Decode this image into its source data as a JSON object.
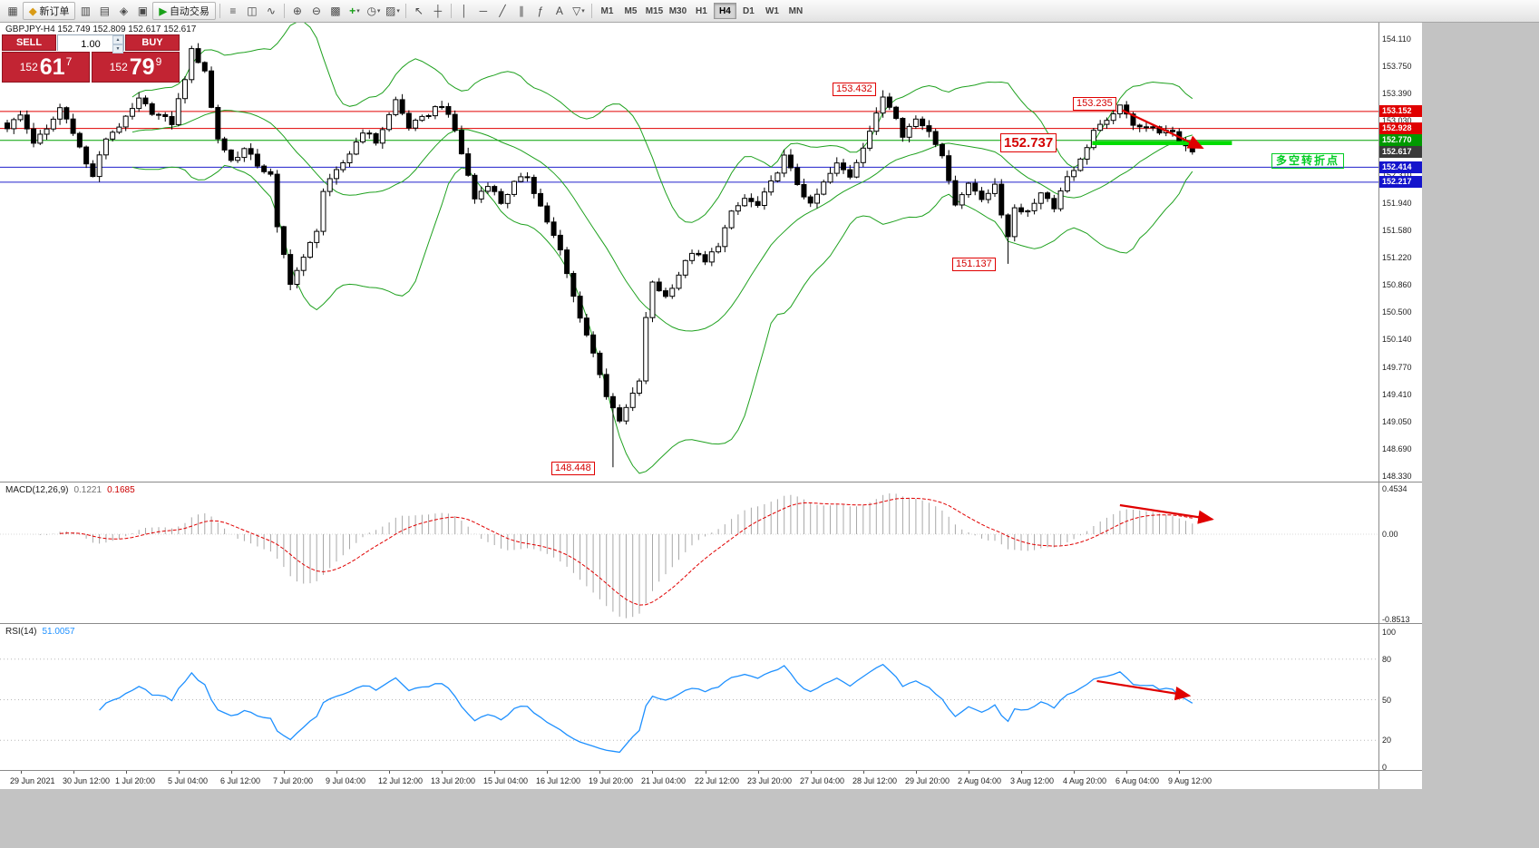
{
  "toolbar": {
    "items": [
      {
        "t": "i",
        "name": "new-chart-icon",
        "g": "▦"
      },
      {
        "t": "b",
        "name": "new-order-button",
        "g": "◆",
        "gc": "#d99b17",
        "label": "新订单"
      },
      {
        "t": "i",
        "name": "market-watch-icon",
        "g": "▥"
      },
      {
        "t": "i",
        "name": "data-window-icon",
        "g": "▤"
      },
      {
        "t": "i",
        "name": "navigator-icon",
        "g": "◈"
      },
      {
        "t": "i",
        "name": "terminal-icon",
        "g": "▣"
      },
      {
        "t": "b",
        "name": "autotrading-button",
        "g": "▶",
        "gc": "#18a018",
        "label": "自动交易"
      },
      {
        "t": "s"
      },
      {
        "t": "i",
        "name": "bar-chart-icon",
        "g": "≡"
      },
      {
        "t": "i",
        "name": "candlestick-chart-icon",
        "g": "◫"
      },
      {
        "t": "i",
        "name": "line-chart-icon",
        "g": "∿"
      },
      {
        "t": "s"
      },
      {
        "t": "i",
        "name": "zoom-in-icon",
        "g": "⊕"
      },
      {
        "t": "i",
        "name": "zoom-out-icon",
        "g": "⊖"
      },
      {
        "t": "i",
        "name": "tile-windows-icon",
        "g": "▩"
      },
      {
        "t": "i",
        "name": "indicators-icon",
        "g": "+",
        "gc": "#18a018",
        "caret": true
      },
      {
        "t": "i",
        "name": "periods-icon",
        "g": "◷",
        "caret": true
      },
      {
        "t": "i",
        "name": "templates-icon",
        "g": "▨",
        "caret": true
      },
      {
        "t": "s"
      },
      {
        "t": "i",
        "name": "cursor-icon",
        "g": "↖"
      },
      {
        "t": "i",
        "name": "crosshair-icon",
        "g": "┼"
      },
      {
        "t": "s"
      },
      {
        "t": "i",
        "name": "vertical-line-icon",
        "g": "│"
      },
      {
        "t": "i",
        "name": "horizontal-line-icon",
        "g": "─"
      },
      {
        "t": "i",
        "name": "trendline-icon",
        "g": "╱"
      },
      {
        "t": "i",
        "name": "channel-icon",
        "g": "∥"
      },
      {
        "t": "i",
        "name": "fibonacci-icon",
        "g": "ƒ"
      },
      {
        "t": "i",
        "name": "text-icon",
        "g": "A"
      },
      {
        "t": "i",
        "name": "arrows-icon",
        "g": "▽",
        "caret": true
      },
      {
        "t": "s"
      }
    ],
    "timeframes": [
      "M1",
      "M5",
      "M15",
      "M30",
      "H1",
      "H4",
      "D1",
      "W1",
      "MN"
    ],
    "active_timeframe": "H4"
  },
  "trade_panel": {
    "sell_label": "SELL",
    "buy_label": "BUY",
    "volume": "1.00",
    "sell_quote": {
      "prefix": "152",
      "big": "61",
      "sup": "7"
    },
    "buy_quote": {
      "prefix": "152",
      "big": "79",
      "sup": "9"
    }
  },
  "chart": {
    "symbol_info": "GBPJPY-H4 152.749 152.809 152.617 152.617"
  },
  "macd": {
    "label": "MACD(12,26,9)",
    "value": "0.1221",
    "signal": "0.1685",
    "scale": [
      "0.4534",
      "0.00",
      "-0.8513"
    ]
  },
  "rsi": {
    "label": "RSI(14)",
    "value": "51.0057",
    "scale": [
      "100",
      "80",
      "50",
      "20",
      "0"
    ]
  },
  "chart_data": {
    "type": "candlestick",
    "symbol": "GBPJPY",
    "timeframe": "H4",
    "candle_count": 181,
    "last_close": 152.617,
    "price_axis_labels": [
      "154.110",
      "153.750",
      "153.390",
      "153.030",
      "152.670",
      "152.310",
      "151.940",
      "151.580",
      "151.220",
      "150.860",
      "150.500",
      "150.140",
      "149.770",
      "149.410",
      "149.050",
      "148.690",
      "148.330"
    ],
    "time_axis_labels": [
      "29 Jun 2021",
      "30 Jun 12:00",
      "1 Jul 20:00",
      "5 Jul 04:00",
      "6 Jul 12:00",
      "7 Jul 20:00",
      "9 Jul 04:00",
      "12 Jul 12:00",
      "13 Jul 20:00",
      "15 Jul 04:00",
      "16 Jul 12:00",
      "19 Jul 20:00",
      "21 Jul 04:00",
      "22 Jul 12:00",
      "23 Jul 20:00",
      "27 Jul 04:00",
      "28 Jul 12:00",
      "29 Jul 20:00",
      "2 Aug 04:00",
      "3 Aug 12:00",
      "4 Aug 20:00",
      "6 Aug 04:00",
      "9 Aug 12:00"
    ],
    "price_path": [
      [
        0,
        152.95
      ],
      [
        2,
        153.1
      ],
      [
        4,
        152.75
      ],
      [
        6,
        152.9
      ],
      [
        8,
        153.2
      ],
      [
        10,
        152.9
      ],
      [
        12,
        152.45
      ],
      [
        13,
        152.3
      ],
      [
        15,
        152.8
      ],
      [
        18,
        153.05
      ],
      [
        20,
        153.3
      ],
      [
        22,
        153.15
      ],
      [
        25,
        153.0
      ],
      [
        27,
        153.6
      ],
      [
        28,
        153.95
      ],
      [
        30,
        153.7
      ],
      [
        31,
        153.2
      ],
      [
        32,
        152.8
      ],
      [
        34,
        152.5
      ],
      [
        36,
        152.65
      ],
      [
        38,
        152.45
      ],
      [
        40,
        152.3
      ],
      [
        41,
        151.6
      ],
      [
        43,
        150.9
      ],
      [
        45,
        151.2
      ],
      [
        47,
        151.6
      ],
      [
        48,
        152.1
      ],
      [
        50,
        152.35
      ],
      [
        52,
        152.6
      ],
      [
        54,
        152.9
      ],
      [
        56,
        152.75
      ],
      [
        58,
        153.1
      ],
      [
        59,
        153.3
      ],
      [
        61,
        152.95
      ],
      [
        63,
        153.05
      ],
      [
        65,
        153.2
      ],
      [
        66,
        153.25
      ],
      [
        68,
        152.9
      ],
      [
        70,
        152.3
      ],
      [
        71,
        152.0
      ],
      [
        73,
        152.2
      ],
      [
        75,
        151.95
      ],
      [
        77,
        152.2
      ],
      [
        79,
        152.3
      ],
      [
        80,
        152.1
      ],
      [
        82,
        151.7
      ],
      [
        84,
        151.3
      ],
      [
        86,
        150.7
      ],
      [
        88,
        150.2
      ],
      [
        90,
        149.7
      ],
      [
        91,
        149.4
      ],
      [
        92,
        149.2
      ],
      [
        93,
        149.05
      ],
      [
        95,
        149.4
      ],
      [
        96,
        149.6
      ],
      [
        97,
        150.4
      ],
      [
        98,
        150.9
      ],
      [
        100,
        150.7
      ],
      [
        102,
        151.0
      ],
      [
        104,
        151.3
      ],
      [
        106,
        151.15
      ],
      [
        108,
        151.4
      ],
      [
        110,
        151.8
      ],
      [
        112,
        152.0
      ],
      [
        114,
        151.9
      ],
      [
        116,
        152.2
      ],
      [
        118,
        152.55
      ],
      [
        120,
        152.2
      ],
      [
        122,
        151.9
      ],
      [
        124,
        152.2
      ],
      [
        126,
        152.45
      ],
      [
        128,
        152.3
      ],
      [
        130,
        152.7
      ],
      [
        132,
        153.1
      ],
      [
        133,
        153.35
      ],
      [
        135,
        153.1
      ],
      [
        136,
        152.85
      ],
      [
        138,
        153.05
      ],
      [
        140,
        152.9
      ],
      [
        142,
        152.6
      ],
      [
        143,
        152.2
      ],
      [
        144,
        151.95
      ],
      [
        146,
        152.2
      ],
      [
        148,
        152.0
      ],
      [
        150,
        152.2
      ],
      [
        151,
        151.75
      ],
      [
        152,
        151.5
      ],
      [
        153,
        151.9
      ],
      [
        155,
        151.8
      ],
      [
        157,
        152.1
      ],
      [
        159,
        151.9
      ],
      [
        161,
        152.3
      ],
      [
        163,
        152.5
      ],
      [
        165,
        152.9
      ],
      [
        167,
        153.0
      ],
      [
        168,
        153.15
      ],
      [
        169,
        153.2
      ],
      [
        171,
        153.0
      ],
      [
        173,
        152.95
      ],
      [
        175,
        152.9
      ],
      [
        177,
        152.85
      ],
      [
        179,
        152.7
      ],
      [
        180,
        152.62
      ]
    ],
    "key_extremes": [
      {
        "i": 28,
        "high": 154.02
      },
      {
        "i": 92,
        "low": 148.448
      },
      {
        "i": 133,
        "high": 153.432
      },
      {
        "i": 152,
        "low": 151.137
      },
      {
        "i": 169,
        "high": 153.235
      }
    ],
    "indicators": {
      "bollinger": {
        "period": 20,
        "deviation": 2,
        "color": "#1fa11f"
      },
      "macd": {
        "params": "12,26,9",
        "value": 0.1221,
        "signal_value": 0.1685,
        "scale_max": 0.4534,
        "scale_min": -0.8513,
        "histogram_color": "#a8a8a8",
        "signal_color": "#e00000"
      },
      "rsi": {
        "period": 14,
        "value": 51.0057,
        "levels": [
          80,
          50,
          20
        ],
        "line_color": "#1E90FF"
      }
    },
    "hlines": [
      {
        "price": 153.152,
        "color": "#e00000"
      },
      {
        "price": 152.928,
        "color": "#e00000"
      },
      {
        "price": 152.77,
        "color": "#00a000"
      },
      {
        "price": 152.414,
        "color": "#2020cc"
      },
      {
        "price": 152.217,
        "color": "#2020cc"
      }
    ],
    "price_tags": [
      {
        "price": 153.152,
        "text": "153.152",
        "bg": "#e00000"
      },
      {
        "price": 152.928,
        "text": "152.928",
        "bg": "#e00000"
      },
      {
        "price": 152.77,
        "text": "152.770",
        "bg": "#009900"
      },
      {
        "price": 152.617,
        "text": "152.617",
        "bg": "#3a3a3a"
      },
      {
        "price": 152.414,
        "text": "152.414",
        "bg": "#1414cc"
      },
      {
        "price": 152.217,
        "text": "152.217",
        "bg": "#1414cc"
      }
    ],
    "callouts": [
      {
        "text": "153.432",
        "i": 125.3,
        "price": 153.53,
        "size": "small"
      },
      {
        "text": "153.235",
        "i": 161.8,
        "price": 153.34,
        "size": "small"
      },
      {
        "text": "152.737",
        "i": 150.8,
        "price": 152.863,
        "size": "large"
      },
      {
        "text": "151.137",
        "i": 143.5,
        "price": 151.22,
        "size": "small"
      },
      {
        "text": "148.448",
        "i": 82.6,
        "price": 148.52,
        "size": "small"
      }
    ],
    "note": {
      "text": "多空转折点",
      "i": 192,
      "price": 152.6,
      "color": "#00cc22"
    },
    "drawings": [
      {
        "type": "thick-line",
        "panel": "main",
        "color": "#00dd00",
        "width": 4.5,
        "from": {
          "i": 164.8,
          "price": 152.735
        },
        "to": {
          "i": 186,
          "price": 152.735
        }
      },
      {
        "type": "arrow",
        "panel": "main",
        "color": "#e00000",
        "from": {
          "i": 169.3,
          "price": 153.17
        },
        "to": {
          "i": 181.5,
          "price": 152.67
        }
      },
      {
        "type": "arrow",
        "panel": "macd",
        "color": "#e00000",
        "from": {
          "i": 169,
          "value": 0.29
        },
        "to": {
          "i": 183,
          "value": 0.15
        }
      },
      {
        "type": "arrow",
        "panel": "rsi",
        "color": "#e00000",
        "from": {
          "i": 165.5,
          "value": 63.8
        },
        "to": {
          "i": 179.5,
          "value": 53
        }
      }
    ]
  }
}
